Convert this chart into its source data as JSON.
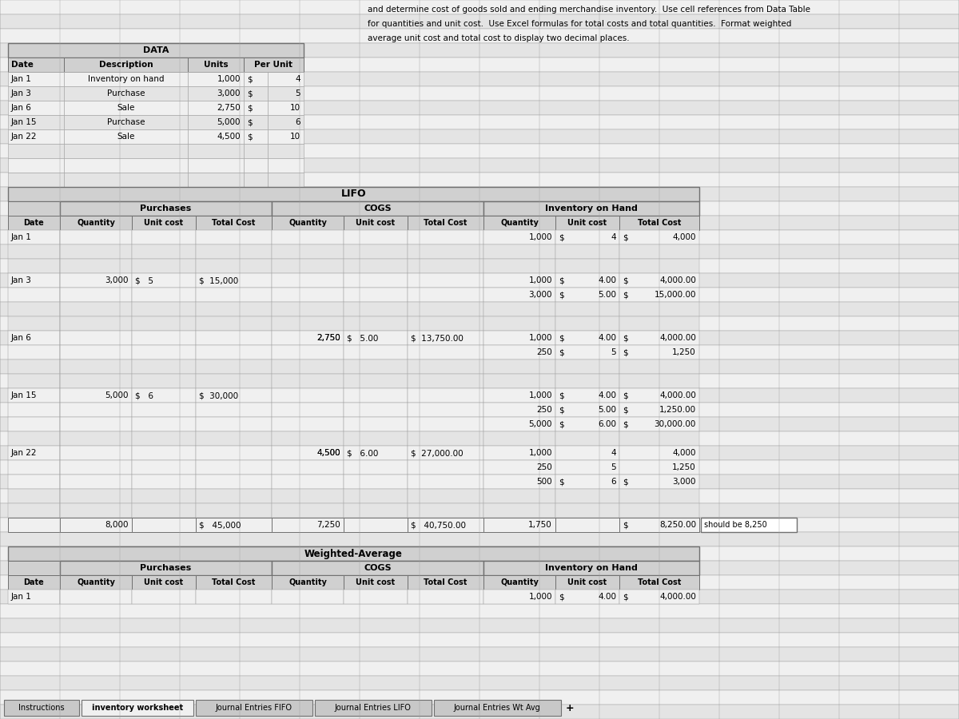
{
  "title_text": "and determine cost of goods sold and ending merchandise inventory.  Use cell references from Data Table\nfor quantities and unit cost.  Use Excel formulas for total costs and total quantities.  Format weighted\naverage unit cost and total cost to display two decimal places.",
  "bg_color": "#c8c8c8",
  "data_rows": [
    [
      "Jan 1",
      "Inventory on hand",
      "1,000",
      "$",
      "4"
    ],
    [
      "Jan 3",
      "Purchase",
      "3,000",
      "$",
      "5"
    ],
    [
      "Jan 6",
      "Sale",
      "2,750",
      "$",
      "10"
    ],
    [
      "Jan 15",
      "Purchase",
      "5,000",
      "$",
      "6"
    ],
    [
      "Jan 22",
      "Sale",
      "4,500",
      "$",
      "10"
    ]
  ],
  "tabs": [
    "Instructions",
    "inventory worksheet",
    "Journal Entries FIFO",
    "Journal Entries LIFO",
    "Journal Entries Wt Avg"
  ]
}
